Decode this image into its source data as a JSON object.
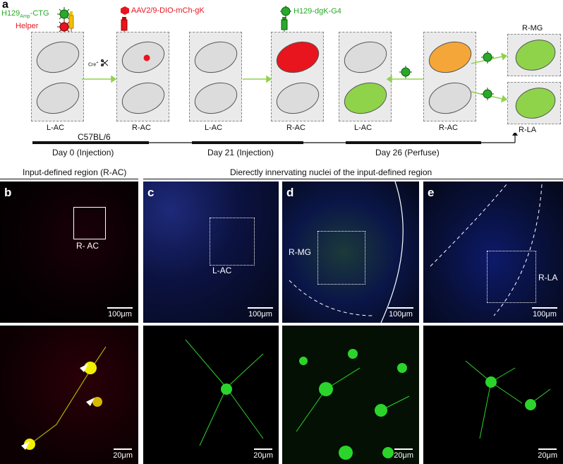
{
  "panel_a": {
    "letter": "a",
    "virus_h129_prefix": "H129",
    "virus_h129_sub": "Amp",
    "virus_h129_suffix": "-CTG",
    "helper": "Helper",
    "aav": "AAV2/9-DIO-mCh-gK",
    "h129dgk": "H129-dgK-G4",
    "cre_prefix": "Cre",
    "cre_icon": "scissors-icon",
    "box_labels": [
      "L-AC",
      "R-AC",
      "L-AC",
      "R-AC",
      "L-AC",
      "R-AC"
    ],
    "r_mg": "R-MG",
    "r_la": "R-LA",
    "strain": "C57BL/6",
    "timeline": [
      "Day 0 (Injection)",
      "Day 21 (Injection)",
      "Day 26 (Perfuse)"
    ],
    "colors": {
      "red": "#e8141e",
      "green": "#2aa82a",
      "light_green": "#8fd34b",
      "orange": "#f4a638",
      "gray_cell": "#dcdcdc"
    }
  },
  "headers": {
    "left": "Input-defined region (R-AC)",
    "right": "Dierectly innervating nuclei of the input-defined region"
  },
  "micro": {
    "b": {
      "letter": "b",
      "region": "R- AC",
      "scale_top": "100μm",
      "scale_bottom": "20μm"
    },
    "c": {
      "letter": "c",
      "region": "L-AC",
      "scale_top": "100μm",
      "scale_bottom": "20μm"
    },
    "d": {
      "letter": "d",
      "region": "R-MG",
      "scale_top": "100μm",
      "scale_bottom": "20μm"
    },
    "e": {
      "letter": "e",
      "region": "R-LA",
      "scale_top": "100μm",
      "scale_bottom": "20μm"
    }
  }
}
